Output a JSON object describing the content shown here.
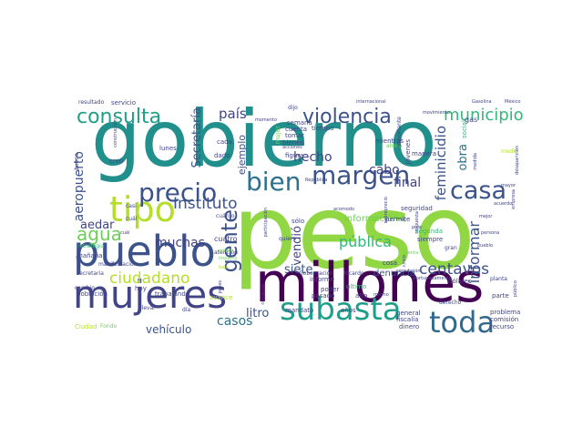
{
  "palette": {
    "dark_purple": "#440154",
    "indigo": "#3b528b",
    "navy": "#414487",
    "blue": "#31688e",
    "teal_blue": "#2c728e",
    "teal": "#21908c",
    "sea_green": "#1f9e89",
    "green": "#35b779",
    "light_green": "#6ece58",
    "lime": "#90d743",
    "yellow_green": "#b5de2b"
  },
  "words": [
    {
      "text": "peso",
      "color": "#90d743"
    },
    {
      "text": "gobierno",
      "color": "#21908c"
    },
    {
      "text": "millones",
      "color": "#440154"
    },
    {
      "text": "pueblo",
      "color": "#3b528b"
    },
    {
      "text": "mujeres",
      "color": "#414487"
    },
    {
      "text": "tipo",
      "color": "#b5de2b"
    },
    {
      "text": "subasta",
      "color": "#1f9e89"
    },
    {
      "text": "toda",
      "color": "#31688e"
    },
    {
      "text": "precio",
      "color": "#3b528b"
    },
    {
      "text": "bien",
      "color": "#2c728e"
    },
    {
      "text": "margen",
      "color": "#3b528b"
    },
    {
      "text": "casa",
      "color": "#3b528b"
    },
    {
      "text": "consulta",
      "color": "#1f9e89"
    },
    {
      "text": "violencia",
      "color": "#3b528b"
    },
    {
      "text": "gente",
      "color": "#3b528b"
    },
    {
      "text": "municipio",
      "color": "#35b779"
    },
    {
      "text": "agua",
      "color": "#6ece58"
    },
    {
      "text": "ciudadano",
      "color": "#b5de2b"
    },
    {
      "text": "Instituto",
      "color": "#3b528b"
    },
    {
      "text": "centavos",
      "color": "#3b528b"
    },
    {
      "text": "informar",
      "color": "#3b528b"
    },
    {
      "text": "feminicidio",
      "color": "#3b528b"
    },
    {
      "text": "aeropuerto",
      "color": "#3b528b"
    },
    {
      "text": "pública",
      "color": "#35b779"
    },
    {
      "text": "casos",
      "color": "#2c728e"
    },
    {
      "text": "muchas",
      "color": "#414487"
    },
    {
      "text": "país",
      "color": "#414487"
    },
    {
      "text": "hecho",
      "color": "#414487"
    },
    {
      "text": "cabo",
      "color": "#414487"
    },
    {
      "text": "final",
      "color": "#414487"
    },
    {
      "text": "aedar",
      "color": "#414487"
    },
    {
      "text": "vendió",
      "color": "#414487"
    },
    {
      "text": "Secretaría",
      "color": "#3b528b"
    },
    {
      "text": "siete",
      "color": "#3b528b"
    },
    {
      "text": "litro",
      "color": "#3b528b"
    },
    {
      "text": "obra",
      "color": "#2c728e"
    },
    {
      "text": "vehículo",
      "color": "#3b528b"
    },
    {
      "text": "ejemplo",
      "color": "#3b528b"
    },
    {
      "text": "denuncia",
      "color": "#3b528b"
    },
    {
      "text": "información",
      "color": "#6ece58"
    },
    {
      "text": "tomar",
      "color": "#414487"
    },
    {
      "text": "bienes",
      "color": "#414487"
    },
    {
      "text": "semana",
      "color": "#414487"
    },
    {
      "text": "mientras",
      "color": "#414487"
    },
    {
      "text": "lunes",
      "color": "#414487"
    },
    {
      "text": "dado",
      "color": "#414487"
    },
    {
      "text": "cada",
      "color": "#414487"
    },
    {
      "text": "figura",
      "color": "#414487"
    },
    {
      "text": "manera",
      "color": "#414487"
    },
    {
      "text": "jóvenes",
      "color": "#414487"
    },
    {
      "text": "cuenta",
      "color": "#414487"
    },
    {
      "text": "permite",
      "color": "#414487"
    },
    {
      "text": "cosa",
      "color": "#414487"
    },
    {
      "text": "hoy",
      "color": "#414487"
    },
    {
      "text": "cuatro",
      "color": "#414487"
    },
    {
      "text": "creo",
      "color": "#414487"
    },
    {
      "text": "mañana",
      "color": "#414487"
    },
    {
      "text": "población",
      "color": "#414487"
    },
    {
      "text": "trabajando",
      "color": "#414487"
    },
    {
      "text": "siempre",
      "color": "#414487"
    },
    {
      "text": "segunda",
      "color": "#35b779"
    },
    {
      "text": "seguridad",
      "color": "#414487"
    },
    {
      "text": "mandato",
      "color": "#414487"
    },
    {
      "text": "años",
      "color": "#414487"
    },
    {
      "text": "general",
      "color": "#414487"
    },
    {
      "text": "problema",
      "color": "#414487"
    },
    {
      "text": "dinero",
      "color": "#414487"
    },
    {
      "text": "fiscalía",
      "color": "#414487"
    },
    {
      "text": "recurso",
      "color": "#414487"
    },
    {
      "text": "comisión",
      "color": "#414487"
    },
    {
      "text": "parte",
      "color": "#414487"
    },
    {
      "text": "alto",
      "color": "#414487"
    },
    {
      "text": "pasado",
      "color": "#414487"
    },
    {
      "text": "poder",
      "color": "#414487"
    },
    {
      "text": "último",
      "color": "#35b779"
    },
    {
      "text": "informe",
      "color": "#414487"
    },
    {
      "text": "Gobernación",
      "color": "#414487"
    },
    {
      "text": "Ricardo",
      "color": "#414487"
    },
    {
      "text": "derecho",
      "color": "#414487"
    },
    {
      "text": "dólares",
      "color": "#414487"
    },
    {
      "text": "planta",
      "color": "#414487"
    },
    {
      "text": "gran",
      "color": "#414487"
    },
    {
      "text": "ahora",
      "color": "#6ece58"
    },
    {
      "text": "social",
      "color": "#35b779"
    },
    {
      "text": "mujer",
      "color": "#6ece58"
    },
    {
      "text": "importante",
      "color": "#414487"
    },
    {
      "text": "tiempo",
      "color": "#414487"
    },
    {
      "text": "dijo",
      "color": "#414487"
    },
    {
      "text": "quiero",
      "color": "#414487"
    },
    {
      "text": "sólo",
      "color": "#414487"
    },
    {
      "text": "cuánto",
      "color": "#414487"
    },
    {
      "text": "atención",
      "color": "#414487"
    },
    {
      "text": "manifestación",
      "color": "#414487"
    },
    {
      "text": "secretaria",
      "color": "#414487"
    },
    {
      "text": "llevar",
      "color": "#414487"
    },
    {
      "text": "día",
      "color": "#414487"
    },
    {
      "text": "Ciudad",
      "color": "#b5de2b"
    },
    {
      "text": "Fondo",
      "color": "#6ece58"
    },
    {
      "text": "avance",
      "color": "#b5de2b"
    },
    {
      "text": "cuál",
      "color": "#414487"
    },
    {
      "text": "casi",
      "color": "#414487"
    },
    {
      "text": "estrategia",
      "color": "#35b779"
    },
    {
      "text": "buena",
      "color": "#414487"
    },
    {
      "text": "cambio",
      "color": "#414487"
    },
    {
      "text": "vendimos",
      "color": "#414487"
    },
    {
      "text": "resultado",
      "color": "#414487"
    },
    {
      "text": "servicio",
      "color": "#414487"
    },
    {
      "text": "internacional",
      "color": "#414487"
    },
    {
      "text": "movimiento",
      "color": "#414487"
    },
    {
      "text": "gas",
      "color": "#414487"
    },
    {
      "text": "Gasolina",
      "color": "#414487"
    },
    {
      "text": "México",
      "color": "#414487"
    },
    {
      "text": "República",
      "color": "#414487"
    },
    {
      "text": "sobreprecio",
      "color": "#414487"
    },
    {
      "text": "corrupción",
      "color": "#414487"
    },
    {
      "text": "persona",
      "color": "#414487"
    },
    {
      "text": "mayor",
      "color": "#414487"
    },
    {
      "text": "medio",
      "color": "#b5de2b"
    },
    {
      "text": "mejor",
      "color": "#414487"
    },
    {
      "text": "puja",
      "color": "#414487"
    },
    {
      "text": "público",
      "color": "#414487"
    },
    {
      "text": "cinco",
      "color": "#414487"
    },
    {
      "text": "pesos",
      "color": "#414487"
    },
    {
      "text": "centavos",
      "color": "#414487"
    },
    {
      "text": "bajo",
      "color": "#b5de2b"
    },
    {
      "text": "impacto",
      "color": "#6ece58"
    },
    {
      "text": "millón",
      "color": "#6ece58"
    },
    {
      "text": "acuerdo",
      "color": "#414487"
    },
    {
      "text": "desaparición",
      "color": "#414487"
    },
    {
      "text": "acciones",
      "color": "#414487"
    },
    {
      "text": "participación",
      "color": "#414487"
    },
    {
      "text": "acomodo",
      "color": "#414487"
    },
    {
      "text": "afortunadamente",
      "color": "#414487"
    },
    {
      "text": "empresa",
      "color": "#414487"
    },
    {
      "text": "respuesta",
      "color": "#414487"
    },
    {
      "text": "medida",
      "color": "#414487"
    },
    {
      "text": "momento",
      "color": "#414487"
    },
    {
      "text": "construcción",
      "color": "#414487"
    },
    {
      "text": "cuenta",
      "color": "#6ece58"
    },
    {
      "text": "mismo",
      "color": "#414487"
    },
    {
      "text": "pueblo",
      "color": "#414487"
    },
    {
      "text": "cuál",
      "color": "#414487"
    }
  ]
}
